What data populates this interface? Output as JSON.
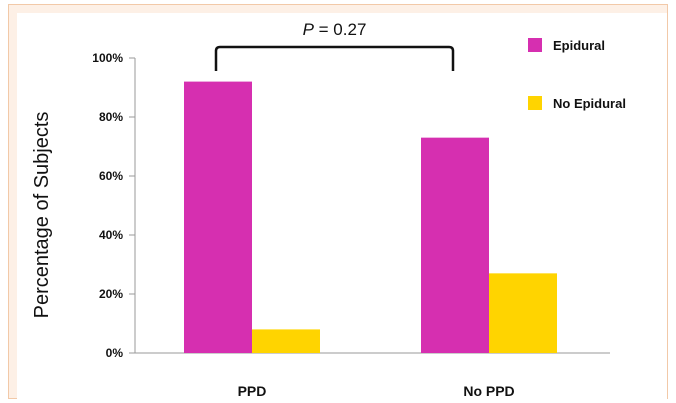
{
  "chart_data": {
    "type": "bar",
    "title": "",
    "xlabel": "",
    "ylabel": "Percentage of Subjects",
    "ylim": [
      0,
      100
    ],
    "yticks": [
      "0%",
      "20%",
      "40%",
      "60%",
      "80%",
      "100%"
    ],
    "categories": [
      "PPD",
      "No PPD"
    ],
    "series": [
      {
        "name": "Epidural",
        "values": [
          92,
          73
        ],
        "color": "#d62fb0"
      },
      {
        "name": "No Epidural",
        "values": [
          8,
          27
        ],
        "color": "#ffd400"
      }
    ],
    "grid": false,
    "legend": "top-right",
    "annotation": {
      "prefix": "P",
      "text": " = 0.27"
    }
  }
}
